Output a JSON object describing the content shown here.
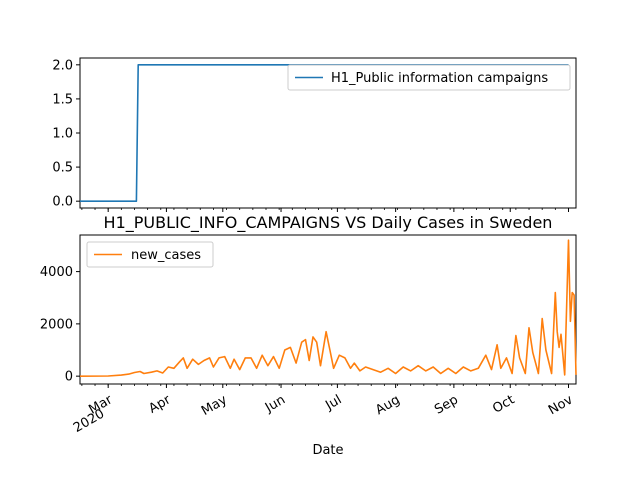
{
  "chart_data": [
    {
      "type": "line",
      "title": "",
      "xlabel": "",
      "ylabel": "",
      "ylim": [
        -0.1,
        2.1
      ],
      "yticks": [
        "0.0",
        "0.5",
        "1.0",
        "1.5",
        "2.0"
      ],
      "legend": "upper-right",
      "series": [
        {
          "name": "H1_Public information campaigns",
          "color": "#1f77b4",
          "points": [
            [
              "2020-02-15",
              0
            ],
            [
              "2020-03-16",
              0
            ],
            [
              "2020-03-17",
              2
            ],
            [
              "2020-11-01",
              2
            ]
          ]
        }
      ]
    },
    {
      "type": "line",
      "title": "H1_PUBLIC_INFO_CAMPAIGNS VS Daily Cases in Sweden",
      "xlabel": "Date",
      "ylabel": "",
      "ylim": [
        -300,
        5400
      ],
      "yticks": [
        "0",
        "2000",
        "4000"
      ],
      "xticks": [
        "Mar\n2020",
        "Apr",
        "May",
        "Jun",
        "Jul",
        "Aug",
        "Sep",
        "Oct",
        "Nov"
      ],
      "legend": "upper-left",
      "series": [
        {
          "name": "new_cases",
          "color": "#ff7f0e",
          "points": [
            [
              "2020-02-15",
              0
            ],
            [
              "2020-03-01",
              5
            ],
            [
              "2020-03-08",
              40
            ],
            [
              "2020-03-12",
              80
            ],
            [
              "2020-03-15",
              140
            ],
            [
              "2020-03-18",
              180
            ],
            [
              "2020-03-20",
              100
            ],
            [
              "2020-03-24",
              150
            ],
            [
              "2020-03-27",
              200
            ],
            [
              "2020-03-30",
              120
            ],
            [
              "2020-04-02",
              350
            ],
            [
              "2020-04-05",
              300
            ],
            [
              "2020-04-08",
              550
            ],
            [
              "2020-04-10",
              700
            ],
            [
              "2020-04-12",
              300
            ],
            [
              "2020-04-15",
              650
            ],
            [
              "2020-04-18",
              450
            ],
            [
              "2020-04-21",
              600
            ],
            [
              "2020-04-24",
              700
            ],
            [
              "2020-04-26",
              350
            ],
            [
              "2020-04-29",
              700
            ],
            [
              "2020-05-02",
              750
            ],
            [
              "2020-05-05",
              300
            ],
            [
              "2020-05-07",
              650
            ],
            [
              "2020-05-10",
              250
            ],
            [
              "2020-05-13",
              700
            ],
            [
              "2020-05-16",
              700
            ],
            [
              "2020-05-19",
              300
            ],
            [
              "2020-05-22",
              800
            ],
            [
              "2020-05-25",
              400
            ],
            [
              "2020-05-28",
              750
            ],
            [
              "2020-05-31",
              300
            ],
            [
              "2020-06-03",
              1000
            ],
            [
              "2020-06-06",
              1100
            ],
            [
              "2020-06-09",
              500
            ],
            [
              "2020-06-12",
              1300
            ],
            [
              "2020-06-14",
              1400
            ],
            [
              "2020-06-16",
              600
            ],
            [
              "2020-06-18",
              1500
            ],
            [
              "2020-06-20",
              1300
            ],
            [
              "2020-06-22",
              400
            ],
            [
              "2020-06-25",
              1700
            ],
            [
              "2020-06-27",
              1000
            ],
            [
              "2020-06-29",
              300
            ],
            [
              "2020-07-02",
              800
            ],
            [
              "2020-07-05",
              700
            ],
            [
              "2020-07-08",
              300
            ],
            [
              "2020-07-10",
              500
            ],
            [
              "2020-07-13",
              200
            ],
            [
              "2020-07-16",
              350
            ],
            [
              "2020-07-20",
              250
            ],
            [
              "2020-07-24",
              150
            ],
            [
              "2020-07-28",
              300
            ],
            [
              "2020-08-01",
              100
            ],
            [
              "2020-08-05",
              350
            ],
            [
              "2020-08-09",
              200
            ],
            [
              "2020-08-13",
              400
            ],
            [
              "2020-08-17",
              200
            ],
            [
              "2020-08-21",
              350
            ],
            [
              "2020-08-25",
              100
            ],
            [
              "2020-08-29",
              300
            ],
            [
              "2020-09-02",
              100
            ],
            [
              "2020-09-06",
              350
            ],
            [
              "2020-09-10",
              200
            ],
            [
              "2020-09-14",
              300
            ],
            [
              "2020-09-18",
              800
            ],
            [
              "2020-09-21",
              250
            ],
            [
              "2020-09-24",
              1200
            ],
            [
              "2020-09-26",
              300
            ],
            [
              "2020-09-29",
              700
            ],
            [
              "2020-10-02",
              100
            ],
            [
              "2020-10-04",
              1550
            ],
            [
              "2020-10-06",
              700
            ],
            [
              "2020-10-09",
              100
            ],
            [
              "2020-10-11",
              1850
            ],
            [
              "2020-10-13",
              900
            ],
            [
              "2020-10-16",
              100
            ],
            [
              "2020-10-18",
              2200
            ],
            [
              "2020-10-20",
              1000
            ],
            [
              "2020-10-23",
              100
            ],
            [
              "2020-10-25",
              3200
            ],
            [
              "2020-10-26",
              1700
            ],
            [
              "2020-10-27",
              1100
            ],
            [
              "2020-10-28",
              1600
            ],
            [
              "2020-10-30",
              50
            ],
            [
              "2020-11-01",
              5200
            ],
            [
              "2020-11-02",
              2100
            ],
            [
              "2020-11-03",
              3200
            ],
            [
              "2020-11-04",
              3100
            ],
            [
              "2020-11-05",
              50
            ]
          ]
        }
      ]
    }
  ]
}
